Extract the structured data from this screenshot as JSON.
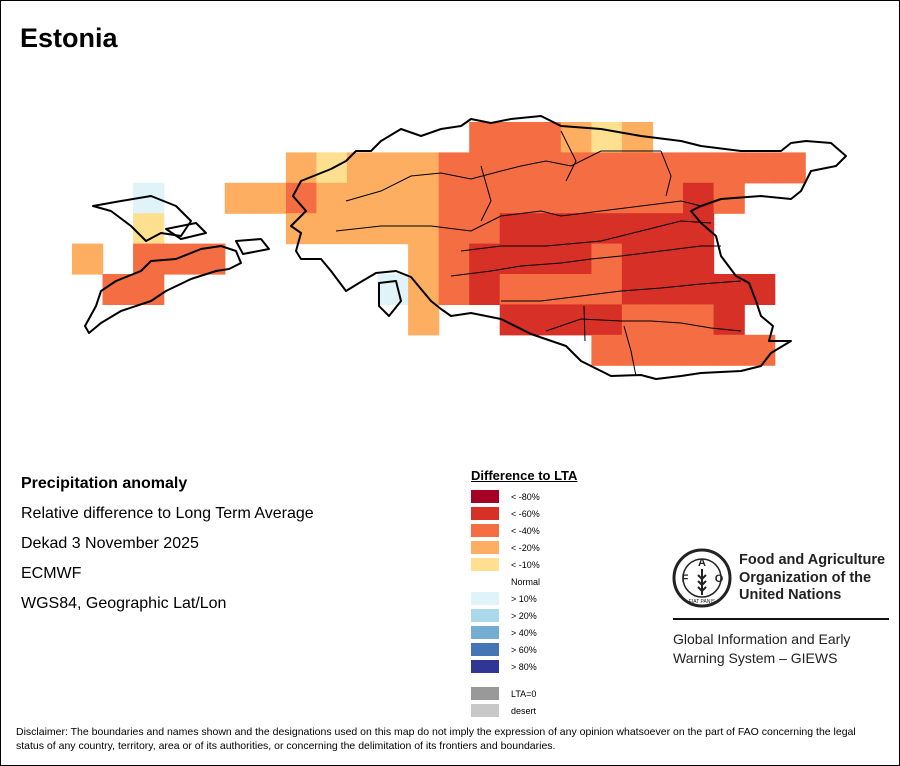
{
  "title": "Estonia",
  "info": {
    "heading": "Precipitation anomaly",
    "line1": "Relative difference to Long Term Average",
    "line2": "Dekad 3 November 2025",
    "line3": "ECMWF",
    "line4": "WGS84, Geographic Lat/Lon"
  },
  "legend": {
    "title": "Difference to LTA",
    "items": [
      {
        "key": "R",
        "label": "< -80%",
        "color": "#a50026"
      },
      {
        "key": "r",
        "label": "< -60%",
        "color": "#d73027"
      },
      {
        "key": "o",
        "label": "< -40%",
        "color": "#f46d43"
      },
      {
        "key": "a",
        "label": "< -20%",
        "color": "#fdae61"
      },
      {
        "key": "y",
        "label": "< -10%",
        "color": "#fee090"
      },
      {
        "key": "n",
        "label": "Normal",
        "color": "#ffffff"
      },
      {
        "key": "b",
        "label": "> 10%",
        "color": "#e0f3f8"
      },
      {
        "key": "c",
        "label": "> 20%",
        "color": "#abd9e9"
      },
      {
        "key": "d",
        "label": "> 40%",
        "color": "#74add1"
      },
      {
        "key": "e",
        "label": "> 60%",
        "color": "#4575b4"
      },
      {
        "key": "f",
        "label": "> 80%",
        "color": "#313695"
      }
    ],
    "extra": [
      {
        "key": "z",
        "label": "LTA=0",
        "color": "#999999"
      },
      {
        "key": "s",
        "label": "desert",
        "color": "#c8c8c8"
      }
    ]
  },
  "anomaly_grid": [
    ".............oooaya......",
    ".......ayaaaoooooooooooo.",
    "..b..aaoaaaaooooooooro...",
    "..y....aaaaaoorrrrrrr....",
    "a.ooo......aorrrrorrr....",
    ".oo.......baoroooorrrrr..",
    "...........a..rrrrooorо..",
    ".................oooooo.."
  ],
  "fao": {
    "logo_text": "FAO FIAT PANIS",
    "name_line1": "Food and Agriculture",
    "name_line2": "Organization of the",
    "name_line3": "United Nations",
    "giews_line1": "Global Information and Early",
    "giews_line2": "Warning System – GIEWS"
  },
  "disclaimer": "Disclaimer: The boundaries and names shown and the designations used on this map do not imply the expression of any opinion whatsoever on the part of FAO concerning the legal status of any country, territory, area or of its authorities, or concerning the delimitation of its frontiers and boundaries."
}
